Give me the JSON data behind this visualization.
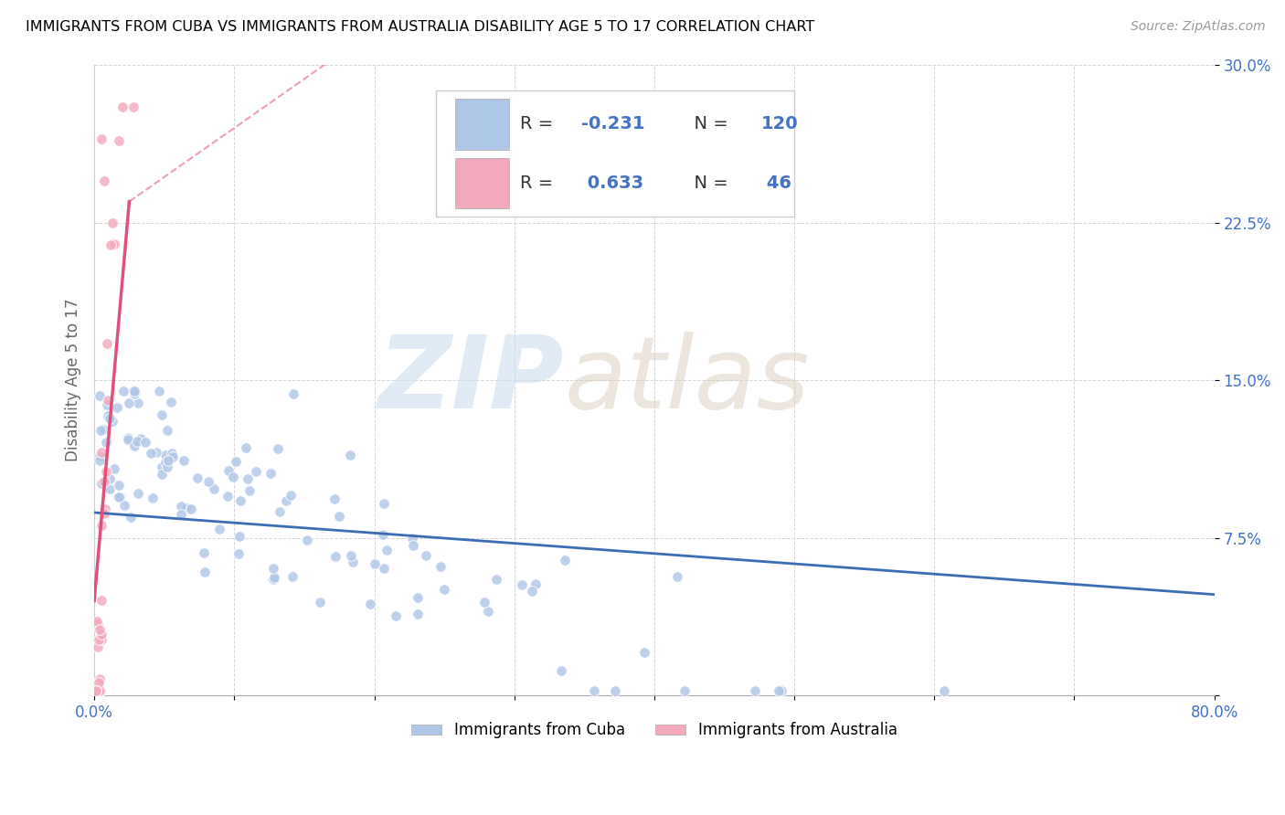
{
  "title": "IMMIGRANTS FROM CUBA VS IMMIGRANTS FROM AUSTRALIA DISABILITY AGE 5 TO 17 CORRELATION CHART",
  "source": "Source: ZipAtlas.com",
  "ylabel": "Disability Age 5 to 17",
  "xlim": [
    0.0,
    0.8
  ],
  "ylim": [
    0.0,
    0.3
  ],
  "xtick_positions": [
    0.0,
    0.1,
    0.2,
    0.3,
    0.4,
    0.5,
    0.6,
    0.7,
    0.8
  ],
  "xticklabels": [
    "0.0%",
    "",
    "",
    "",
    "",
    "",
    "",
    "",
    "80.0%"
  ],
  "ytick_positions": [
    0.0,
    0.075,
    0.15,
    0.225,
    0.3
  ],
  "yticklabels": [
    "",
    "7.5%",
    "15.0%",
    "22.5%",
    "30.0%"
  ],
  "cuba_R": -0.231,
  "cuba_N": 120,
  "australia_R": 0.633,
  "australia_N": 46,
  "cuba_color": "#aec6e8",
  "australia_color": "#f4a8bc",
  "cuba_line_color": "#3b6db5",
  "australia_line_color": "#e0507a",
  "legend_label_cuba": "Immigrants from Cuba",
  "legend_label_australia": "Immigrants from Australia",
  "cuba_line_x0": 0.0,
  "cuba_line_x1": 0.8,
  "cuba_line_y0": 0.087,
  "cuba_line_y1": 0.048,
  "aus_line_solid_x0": 0.0,
  "aus_line_solid_x1": 0.025,
  "aus_line_solid_y0": 0.045,
  "aus_line_solid_y1": 0.235,
  "aus_line_dash_x0": 0.025,
  "aus_line_dash_x1": 0.175,
  "aus_line_dash_y0": 0.235,
  "aus_line_dash_y1": 0.305
}
